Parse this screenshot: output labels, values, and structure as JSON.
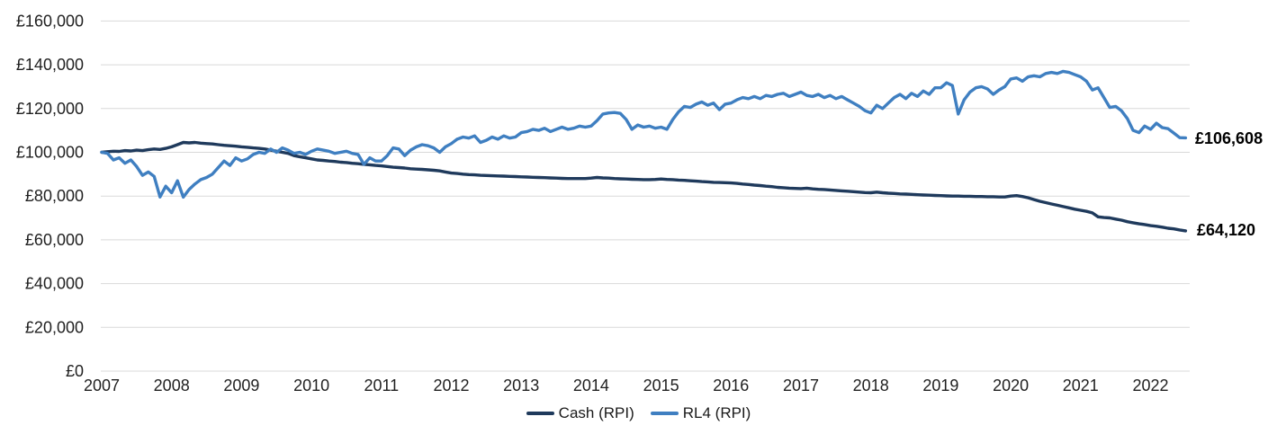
{
  "chart_data": {
    "type": "line",
    "title": "",
    "currency": "GBP",
    "x_axis": {
      "tick_labels": [
        "2007",
        "2008",
        "2009",
        "2010",
        "2011",
        "2012",
        "2013",
        "2014",
        "2015",
        "2016",
        "2017",
        "2018",
        "2019",
        "2020",
        "2021",
        "2022"
      ],
      "start": "2007-01",
      "end": "2022-07",
      "interval": "monthly"
    },
    "y_axis": {
      "tick_labels": [
        "£0",
        "£20,000",
        "£40,000",
        "£60,000",
        "£80,000",
        "£100,000",
        "£120,000",
        "£140,000",
        "£160,000"
      ],
      "min": 0,
      "max": 160000,
      "tick_step": 20000
    },
    "grid": "horizontal-only",
    "legend": {
      "position": "bottom-center"
    },
    "series": [
      {
        "name": "Cash (RPI)",
        "color": "#1f3a5c",
        "end_label": "£64,120",
        "final_value": 64120,
        "values": [
          100000,
          100300,
          100500,
          100400,
          100800,
          100600,
          101000,
          100800,
          101200,
          101500,
          101300,
          101800,
          102500,
          103500,
          104500,
          104300,
          104500,
          104200,
          104000,
          103800,
          103500,
          103200,
          103000,
          102800,
          102500,
          102300,
          102000,
          101800,
          101500,
          101000,
          100500,
          100000,
          99500,
          98500,
          98000,
          97500,
          97000,
          96500,
          96300,
          96000,
          95800,
          95500,
          95300,
          95000,
          94800,
          94500,
          94300,
          94000,
          93800,
          93500,
          93200,
          93000,
          92800,
          92500,
          92300,
          92200,
          92000,
          91800,
          91500,
          91000,
          90500,
          90300,
          90000,
          89800,
          89700,
          89500,
          89400,
          89300,
          89200,
          89100,
          89000,
          88900,
          88800,
          88700,
          88600,
          88500,
          88400,
          88300,
          88200,
          88100,
          88000,
          88000,
          88000,
          88000,
          88200,
          88500,
          88300,
          88200,
          88000,
          87900,
          87800,
          87700,
          87600,
          87500,
          87500,
          87600,
          87800,
          87600,
          87500,
          87300,
          87200,
          87000,
          86800,
          86600,
          86500,
          86300,
          86200,
          86100,
          86000,
          85800,
          85500,
          85300,
          85000,
          84800,
          84500,
          84300,
          84000,
          83800,
          83600,
          83500,
          83400,
          83600,
          83300,
          83100,
          83000,
          82800,
          82600,
          82400,
          82200,
          82000,
          81800,
          81600,
          81500,
          81800,
          81500,
          81300,
          81200,
          81000,
          80900,
          80800,
          80600,
          80500,
          80400,
          80300,
          80200,
          80100,
          80000,
          80000,
          79900,
          79900,
          79800,
          79800,
          79700,
          79700,
          79600,
          79600,
          80000,
          80200,
          79800,
          79200,
          78400,
          77600,
          77000,
          76400,
          75800,
          75200,
          74600,
          74000,
          73500,
          73000,
          72300,
          70500,
          70200,
          70000,
          69500,
          69000,
          68300,
          67800,
          67300,
          67000,
          66500,
          66200,
          65800,
          65300,
          65000,
          64500,
          64120
        ]
      },
      {
        "name": "RL4 (RPI)",
        "color": "#3f7fc1",
        "end_label": "£106,608",
        "final_value": 106608,
        "values": [
          100000,
          99500,
          96500,
          97500,
          95000,
          96500,
          93500,
          89500,
          91000,
          89000,
          79600,
          84500,
          81500,
          87000,
          79500,
          83000,
          85500,
          87500,
          88500,
          90000,
          93000,
          96000,
          94000,
          97500,
          96000,
          97000,
          99000,
          100000,
          99500,
          101500,
          100000,
          102000,
          101000,
          99500,
          100000,
          99000,
          100500,
          101500,
          101000,
          100500,
          99500,
          100000,
          100500,
          99500,
          99000,
          94500,
          97500,
          96000,
          96000,
          98500,
          102000,
          101500,
          98500,
          101000,
          102500,
          103500,
          103000,
          102000,
          100000,
          102500,
          104000,
          106000,
          107000,
          106500,
          107500,
          104500,
          105500,
          107000,
          106000,
          107500,
          106500,
          107000,
          109000,
          109500,
          110500,
          110000,
          111000,
          109500,
          110500,
          111500,
          110500,
          111000,
          112000,
          111500,
          112000,
          114500,
          117500,
          118000,
          118200,
          117800,
          115000,
          110500,
          112500,
          111500,
          112000,
          111000,
          111500,
          110500,
          115000,
          118500,
          121000,
          120500,
          122000,
          123000,
          121500,
          122500,
          119500,
          122000,
          122500,
          124000,
          125000,
          124500,
          125500,
          124500,
          126000,
          125500,
          126500,
          127000,
          125500,
          126500,
          127500,
          126000,
          125500,
          126500,
          125000,
          126000,
          124500,
          125500,
          124000,
          122500,
          121000,
          119000,
          118000,
          121500,
          120000,
          122500,
          125000,
          126500,
          124500,
          127000,
          125500,
          128000,
          126500,
          129500,
          129500,
          131800,
          130500,
          117500,
          124000,
          127500,
          129500,
          130000,
          129000,
          126500,
          128500,
          130000,
          133500,
          134000,
          132500,
          134500,
          135000,
          134500,
          136000,
          136500,
          136000,
          137000,
          136500,
          135500,
          134500,
          132500,
          128500,
          129500,
          125000,
          120500,
          121000,
          119000,
          115500,
          110000,
          109000,
          112000,
          110500,
          113300,
          111300,
          110800,
          108800,
          106700,
          106608
        ]
      }
    ]
  },
  "colors": {
    "grid": "#d9d9d9",
    "axis_text": "#1f1f1f"
  }
}
